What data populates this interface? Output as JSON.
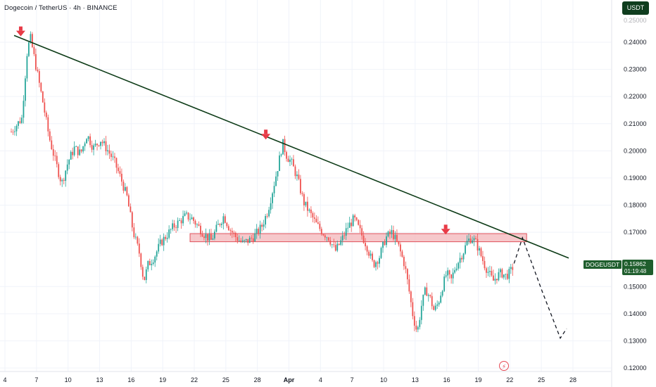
{
  "header": {
    "symbol_title": "Dogecoin / TetherUS · 4h · BINANCE",
    "currency_badge": "USDT"
  },
  "price_label": {
    "symbol": "DOGEUSDT",
    "price": "0.15862",
    "countdown": "01:19:48"
  },
  "icons": {
    "replay": "lightning-bolt-icon"
  },
  "colors": {
    "up_candle": "#26a69a",
    "down_candle": "#ef5350",
    "trendline": "#0d3b17",
    "zone_fill": "#f3b5b9",
    "zone_border": "#e0535d",
    "arrow": "#e83b47",
    "accent_green": "#1f5e2d"
  },
  "chart_data": {
    "type": "candlestick",
    "x_ticks": [
      "4",
      "7",
      "10",
      "13",
      "16",
      "19",
      "22",
      "25",
      "28",
      "Apr",
      "4",
      "7",
      "10",
      "13",
      "16",
      "19",
      "22",
      "25",
      "28"
    ],
    "y_ticks": [
      "0.24000",
      "0.23000",
      "0.22000",
      "0.21000",
      "0.20000",
      "0.19000",
      "0.18000",
      "0.17000",
      "0.15000",
      "0.14000",
      "0.13000",
      "0.12000"
    ],
    "ylim": [
      0.12,
      0.25
    ],
    "last_price": 0.15862,
    "price_path": [
      [
        0.0,
        0.207
      ],
      [
        1.0,
        0.212
      ],
      [
        1.5,
        0.236
      ],
      [
        1.8,
        0.242
      ],
      [
        2.3,
        0.232
      ],
      [
        3.0,
        0.218
      ],
      [
        3.6,
        0.205
      ],
      [
        4.2,
        0.196
      ],
      [
        4.8,
        0.188
      ],
      [
        5.4,
        0.196
      ],
      [
        6.0,
        0.201
      ],
      [
        6.6,
        0.199
      ],
      [
        7.2,
        0.206
      ],
      [
        7.8,
        0.201
      ],
      [
        8.5,
        0.204
      ],
      [
        9.2,
        0.2
      ],
      [
        9.8,
        0.196
      ],
      [
        10.4,
        0.19
      ],
      [
        11.0,
        0.183
      ],
      [
        11.6,
        0.17
      ],
      [
        12.2,
        0.162
      ],
      [
        12.6,
        0.152
      ],
      [
        13.0,
        0.158
      ],
      [
        13.6,
        0.161
      ],
      [
        14.2,
        0.166
      ],
      [
        14.8,
        0.169
      ],
      [
        15.4,
        0.172
      ],
      [
        16.0,
        0.174
      ],
      [
        16.6,
        0.176
      ],
      [
        17.2,
        0.175
      ],
      [
        17.8,
        0.172
      ],
      [
        18.4,
        0.169
      ],
      [
        19.0,
        0.167
      ],
      [
        19.6,
        0.172
      ],
      [
        20.2,
        0.176
      ],
      [
        20.8,
        0.171
      ],
      [
        21.4,
        0.168
      ],
      [
        22.0,
        0.166
      ],
      [
        22.6,
        0.167
      ],
      [
        23.2,
        0.169
      ],
      [
        23.8,
        0.172
      ],
      [
        24.4,
        0.178
      ],
      [
        25.0,
        0.188
      ],
      [
        25.4,
        0.195
      ],
      [
        25.8,
        0.203
      ],
      [
        26.2,
        0.198
      ],
      [
        26.6,
        0.196
      ],
      [
        27.2,
        0.19
      ],
      [
        27.8,
        0.181
      ],
      [
        28.4,
        0.177
      ],
      [
        29.0,
        0.173
      ],
      [
        29.6,
        0.17
      ],
      [
        30.2,
        0.168
      ],
      [
        30.8,
        0.163
      ],
      [
        31.4,
        0.167
      ],
      [
        32.0,
        0.172
      ],
      [
        32.6,
        0.175
      ],
      [
        33.2,
        0.17
      ],
      [
        33.8,
        0.165
      ],
      [
        34.4,
        0.158
      ],
      [
        35.0,
        0.161
      ],
      [
        35.6,
        0.168
      ],
      [
        36.2,
        0.17
      ],
      [
        36.8,
        0.165
      ],
      [
        37.4,
        0.158
      ],
      [
        37.8,
        0.149
      ],
      [
        38.2,
        0.139
      ],
      [
        38.6,
        0.133
      ],
      [
        39.0,
        0.143
      ],
      [
        39.4,
        0.149
      ],
      [
        39.8,
        0.146
      ],
      [
        40.2,
        0.141
      ],
      [
        40.6,
        0.144
      ],
      [
        41.0,
        0.15
      ],
      [
        41.4,
        0.155
      ],
      [
        41.8,
        0.152
      ],
      [
        42.2,
        0.157
      ],
      [
        42.6,
        0.16
      ],
      [
        43.0,
        0.163
      ],
      [
        43.4,
        0.167
      ],
      [
        43.8,
        0.168
      ],
      [
        44.2,
        0.166
      ],
      [
        44.6,
        0.162
      ],
      [
        45.0,
        0.158
      ],
      [
        45.4,
        0.155
      ],
      [
        45.8,
        0.152
      ],
      [
        46.2,
        0.154
      ],
      [
        46.6,
        0.155
      ],
      [
        47.0,
        0.154
      ],
      [
        47.4,
        0.155
      ],
      [
        47.8,
        0.158
      ]
    ],
    "price_path_x_domain": [
      0,
      53
    ],
    "trendline": {
      "start": [
        0.27,
        0.2425
      ],
      "end": [
        53.0,
        0.1605
      ]
    },
    "resistance_zone": {
      "x": [
        17.0,
        49.0
      ],
      "y": [
        0.1665,
        0.1695
      ]
    },
    "projection_path": [
      [
        47.8,
        0.1585
      ],
      [
        48.6,
        0.168
      ],
      [
        50.5,
        0.148
      ],
      [
        52.2,
        0.131
      ],
      [
        52.8,
        0.1345
      ]
    ],
    "peak_markers": [
      {
        "x": 0.9,
        "y": 0.2445
      },
      {
        "x": 24.2,
        "y": 0.2065
      },
      {
        "x": 41.3,
        "y": 0.1715
      }
    ]
  }
}
